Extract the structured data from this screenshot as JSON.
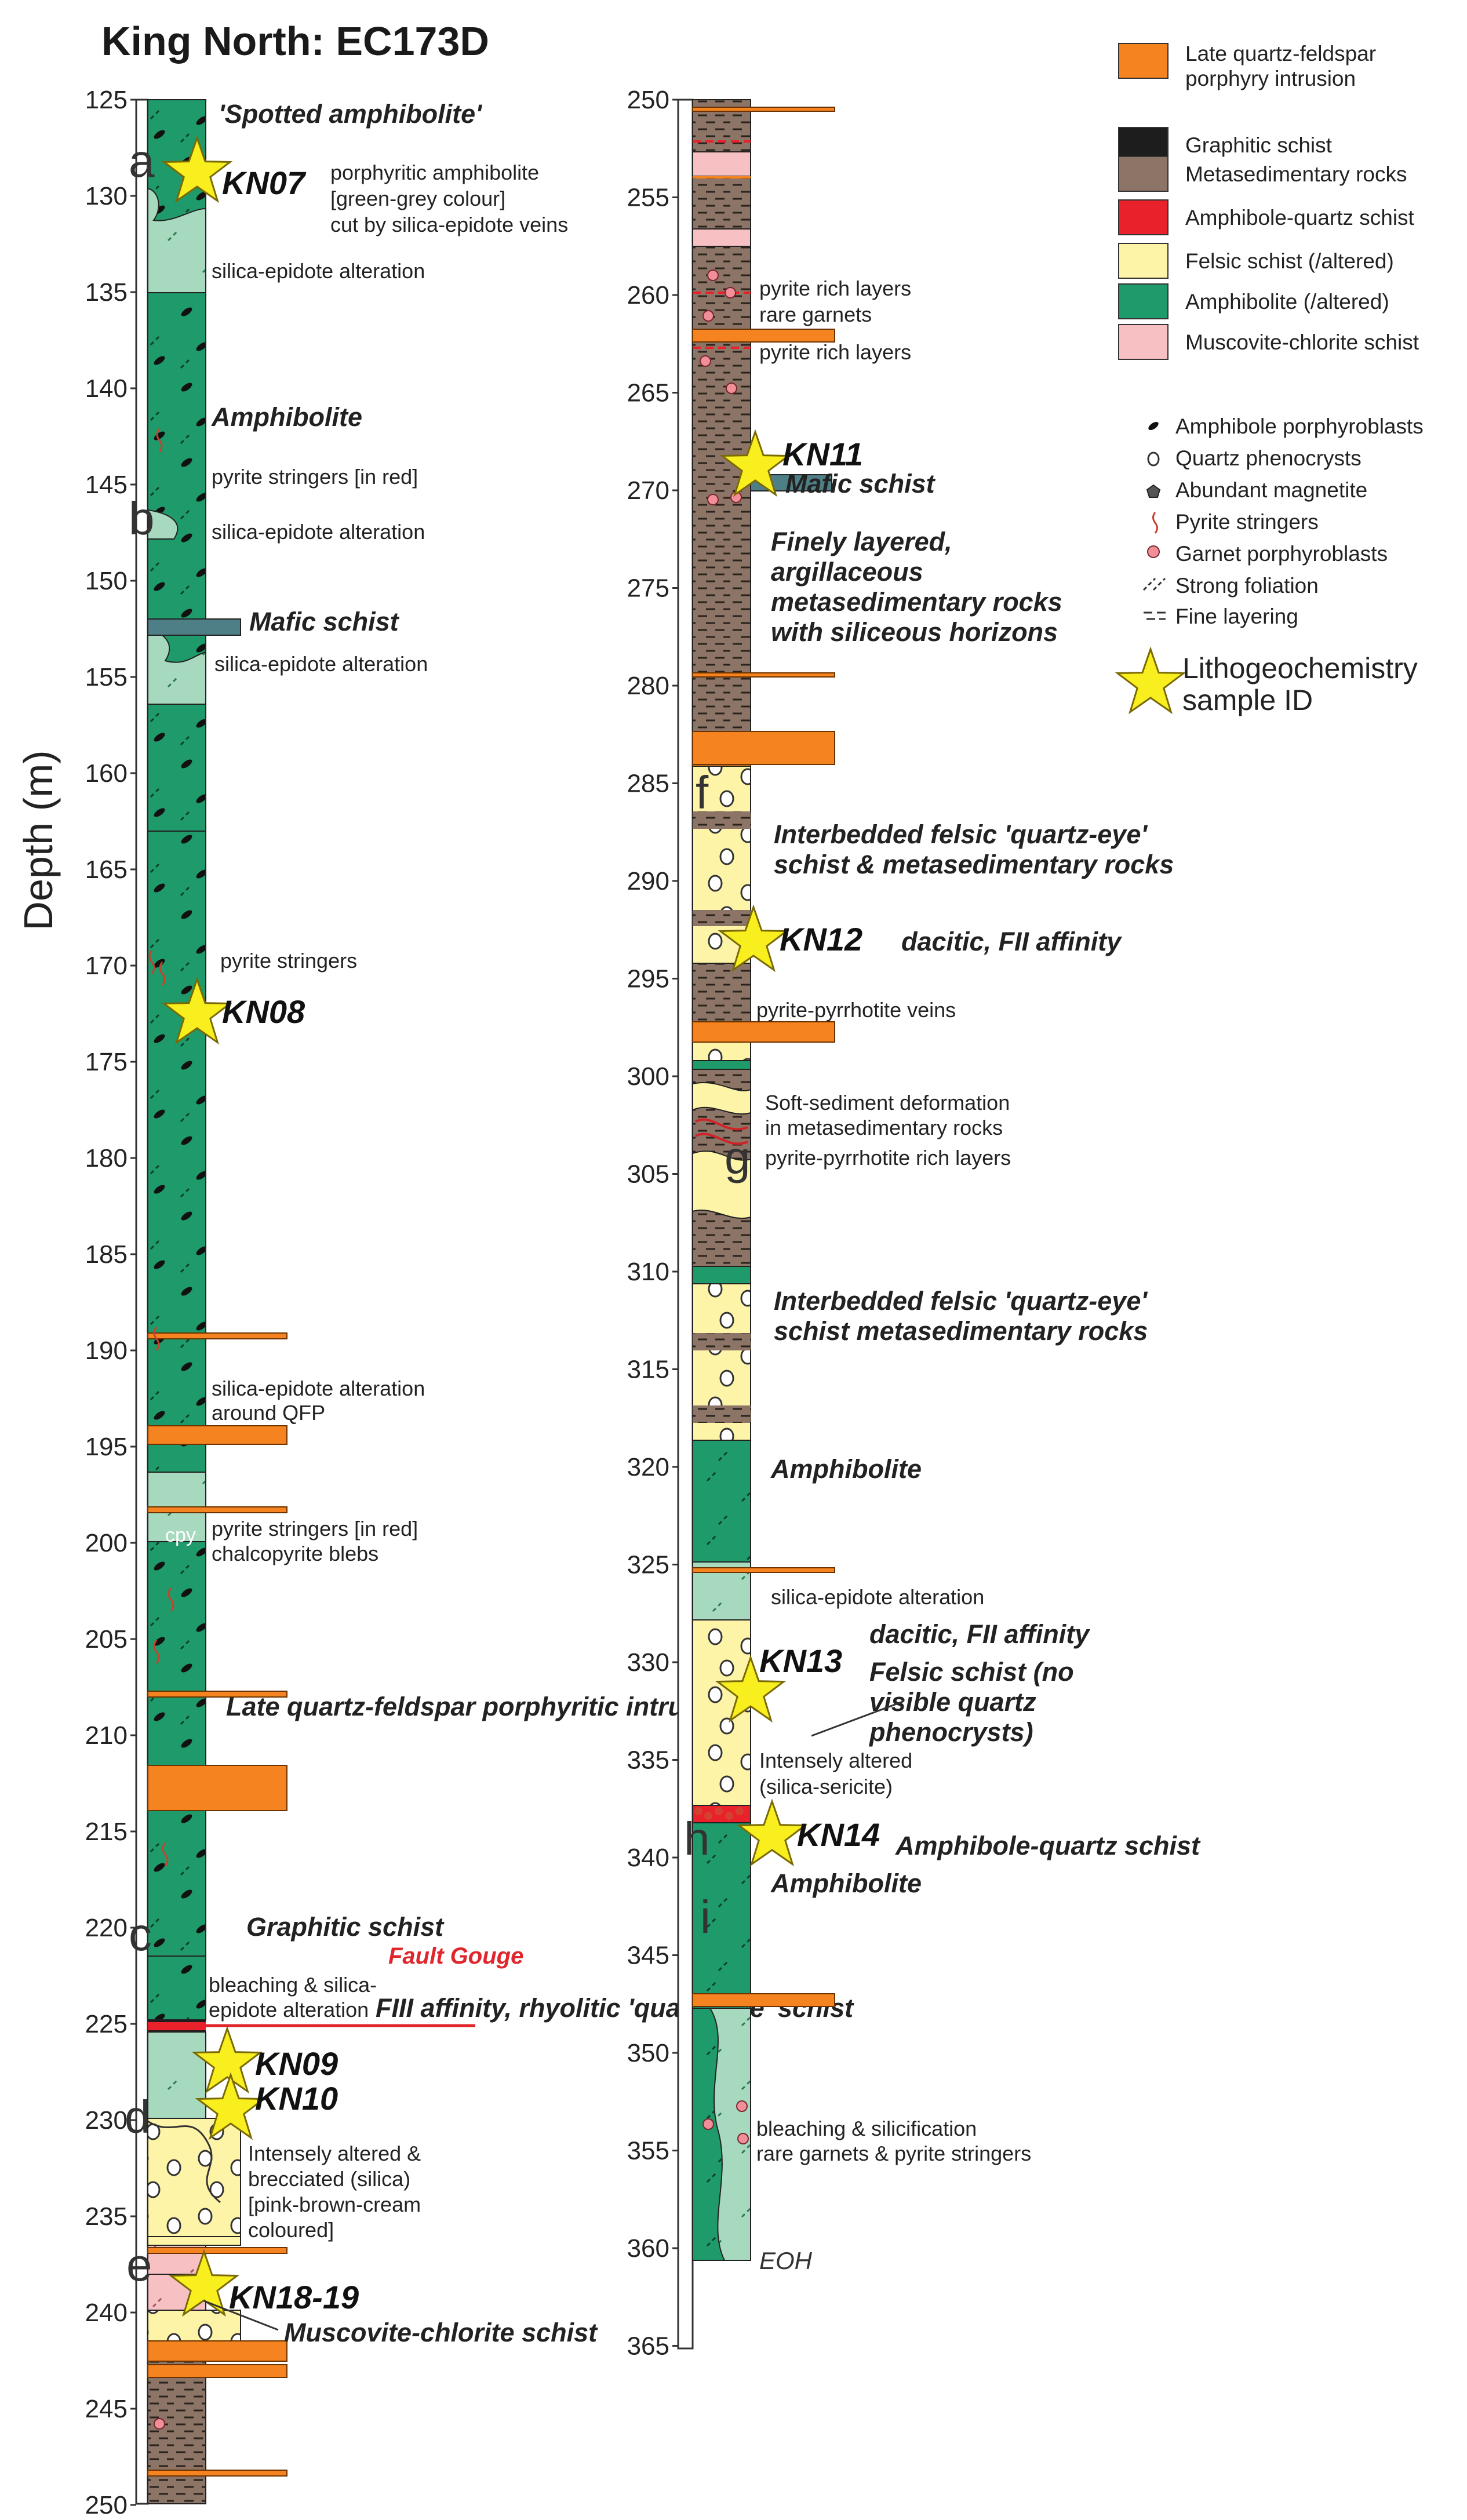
{
  "title": "King North: EC173D",
  "y_axis_label": "Depth (m)",
  "colors": {
    "amphibolite": "#1f9a6a",
    "amphibolite_altered": "#a6d9bd",
    "felsic": "#fdf4a8",
    "metased": "#8c7566",
    "muscovite": "#f7c1c4",
    "graphitic": "#1d1d1d",
    "amph_quartz": "#e8212a",
    "qfp": "#f5831f",
    "mafic_schist": "#4f7f86",
    "star_fill": "#f9ef1f",
    "fault_red": "#e0262c"
  },
  "columns": [
    {
      "id": "left",
      "top_depth": 125,
      "bottom_depth": 250,
      "tick_step": 5,
      "ticks": [
        "125",
        "130",
        "135",
        "140",
        "145",
        "150",
        "155",
        "160",
        "165",
        "170",
        "175",
        "180",
        "185",
        "190",
        "195",
        "200",
        "205",
        "210",
        "215",
        "220",
        "225",
        "230",
        "235",
        "240",
        "245",
        "250"
      ]
    },
    {
      "id": "right",
      "top_depth": 250,
      "bottom_depth": 365,
      "tick_step": 5,
      "ticks": [
        "250",
        "255",
        "260",
        "265",
        "270",
        "275",
        "280",
        "285",
        "290",
        "295",
        "300",
        "305",
        "310",
        "315",
        "320",
        "325",
        "330",
        "335",
        "340",
        "345",
        "350",
        "355",
        "360",
        "365"
      ]
    }
  ],
  "units": {
    "spotted_amphibolite": "'Spotted amphibolite'",
    "amphibolite_1": "Amphibolite",
    "mafic_schist_1": "Mafic schist",
    "late_qfp_intrusions": "Late quartz-feldspar porphyritic intrusions",
    "graphitic_schist": "Graphitic schist",
    "fault_gouge": "Fault Gouge",
    "fiii_rhyolitic": "FIII affinity, rhyolitic 'quartz-eye' schist",
    "muscovite_chlorite": "Muscovite-chlorite schist",
    "mafic_schist_2": "Mafic schist",
    "finely_layered": "Finely layered, argillaceous metasedimentary rocks with siliceous horizons",
    "interbedded_1": "Interbedded felsic 'quartz-eye' schist & metasedimentary rocks",
    "interbedded_2": "Interbedded felsic 'quartz-eye' schist metasedimentary rocks",
    "amphibolite_2": "Amphibolite",
    "felsic_schist": "Felsic schist (no visible quartz phenocrysts)",
    "dacitic_fii_13": "dacitic, FII affinity",
    "amphibole_quartz_schist": "Amphibole-quartz schist",
    "amphibolite_3": "Amphibolite",
    "eoh": "EOH"
  },
  "notes": {
    "kn07_desc_1": "porphyritic amphibolite",
    "kn07_desc_2": "[green-grey colour]",
    "kn07_desc_3": "cut by silica-epidote veins",
    "sil_epi_135": "silica-epidote alteration",
    "pyrite_red_145": "pyrite stringers [in red]",
    "sil_epi_148": "silica-epidote alteration",
    "sil_epi_155": "silica-epidote alteration",
    "pyrite_171": "pyrite stringers",
    "sil_epi_qfp_1": "silica-epidote alteration",
    "sil_epi_qfp_2": "around QFP",
    "pyrite_red_200": "pyrite stringers [in red]",
    "chalcopyrite": "chalcopyrite blebs",
    "cpy": "cpy",
    "bleach_1": "bleaching & silica-",
    "bleach_2": "epidote alteration",
    "altered_1": "Intensely altered &",
    "altered_2": "brecciated (silica)",
    "altered_3": "[pink-brown-cream",
    "altered_4": "coloured]",
    "pyrite_rich_260": "pyrite rich layers",
    "rare_garnets": "rare garnets",
    "pyrite_rich_264": "pyrite rich layers",
    "pyr_pyrr_veins": "pyrite-pyrrhotite veins",
    "soft_sed_1": "Soft-sediment deformation",
    "soft_sed_2": "in metasedimentary rocks",
    "pyr_pyrr_layers": "pyrite-pyrrhotite rich layers",
    "sil_epi_329": "silica-epidote alteration",
    "int_alt_1": "Intensely altered",
    "int_alt_2": "(silica-sericite)",
    "bleach_silic": "bleaching & silicification",
    "rare_garnets_pyrite": "rare garnets & pyrite stringers"
  },
  "samples": [
    {
      "id": "KN07",
      "note": ""
    },
    {
      "id": "KN08",
      "note": ""
    },
    {
      "id": "KN09",
      "note": ""
    },
    {
      "id": "KN10",
      "note": ""
    },
    {
      "id": "KN18-19",
      "note": ""
    },
    {
      "id": "KN11",
      "note": ""
    },
    {
      "id": "KN12",
      "note": "dacitic, FII affinity"
    },
    {
      "id": "KN13",
      "note": ""
    },
    {
      "id": "KN14",
      "note": ""
    }
  ],
  "letters": [
    "a",
    "b",
    "c",
    "d",
    "e",
    "f",
    "g",
    "h",
    "i"
  ],
  "legend": {
    "lithologies": [
      {
        "label": "Late quartz-feldspar",
        "label2": "porphyry intrusion",
        "color": "#f5831f"
      },
      {
        "label": "Graphitic schist",
        "color": "#1d1d1d"
      },
      {
        "label": "Metasedimentary rocks",
        "color": "#8c7566"
      },
      {
        "label": "Amphibole-quartz schist",
        "color": "#e8212a"
      },
      {
        "label": "Felsic schist (/altered)",
        "color": "#fdf4a8"
      },
      {
        "label": "Amphibolite (/altered)",
        "color": "#1f9a6a"
      },
      {
        "label": "Muscovite-chlorite schist",
        "color": "#f7c1c4"
      }
    ],
    "symbols": [
      {
        "label": "Amphibole porphyroblasts",
        "icon": "amphibole-porphyroblast-icon"
      },
      {
        "label": "Quartz phenocrysts",
        "icon": "quartz-phenocryst-icon"
      },
      {
        "label": "Abundant magnetite",
        "icon": "magnetite-icon"
      },
      {
        "label": "Pyrite stringers",
        "icon": "pyrite-stringer-icon"
      },
      {
        "label": "Garnet porphyroblasts",
        "icon": "garnet-porphyroblast-icon"
      },
      {
        "label": "Strong foliation",
        "icon": "strong-foliation-icon"
      },
      {
        "label": "Fine layering",
        "icon": "fine-layering-icon"
      }
    ],
    "star_label_1": "Lithogeochemistry",
    "star_label_2": "sample ID"
  }
}
